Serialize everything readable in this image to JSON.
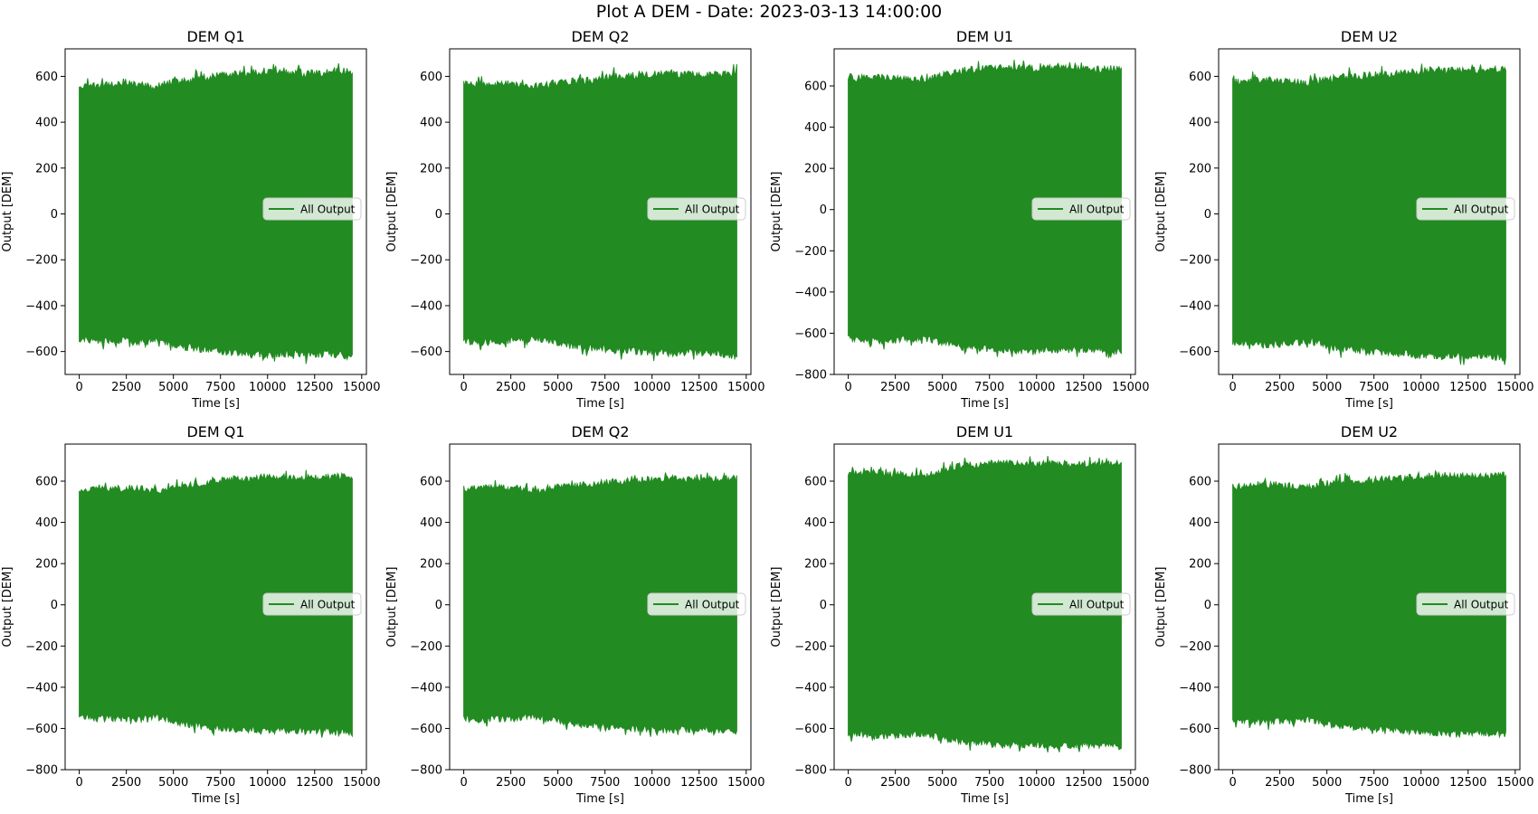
{
  "suptitle": "Plot A DEM - Date: 2023-03-13 14:00:00",
  "colors": {
    "line": "#228b22",
    "axes": "#000000",
    "legend_bg": "#ffffff",
    "legend_edge": "#cccccc"
  },
  "chart_data": [
    {
      "type": "area",
      "title": "DEM Q1",
      "xlabel": "Time [s]",
      "ylabel": "Output [DEM]",
      "legend": "All Output",
      "legend_loc": "center right",
      "xlim": [
        -750,
        15250
      ],
      "ylim": [
        -700,
        720
      ],
      "xticks": [
        0,
        2500,
        5000,
        7500,
        10000,
        12500,
        15000
      ],
      "yticks": [
        -600,
        -400,
        -200,
        0,
        200,
        400,
        600
      ],
      "series": [
        {
          "name": "All Output",
          "x": [
            0,
            1000,
            2000,
            3000,
            4000,
            5000,
            6000,
            7000,
            8000,
            9000,
            10000,
            11000,
            12000,
            13000,
            14000,
            14500
          ],
          "upper": [
            570,
            575,
            580,
            585,
            570,
            590,
            600,
            615,
            625,
            630,
            640,
            635,
            630,
            635,
            640,
            640
          ],
          "lower": [
            -560,
            -570,
            -565,
            -575,
            -560,
            -585,
            -600,
            -610,
            -620,
            -625,
            -630,
            -625,
            -630,
            -625,
            -635,
            -640
          ]
        }
      ]
    },
    {
      "type": "area",
      "title": "DEM Q2",
      "xlabel": "Time [s]",
      "ylabel": "Output [DEM]",
      "legend": "All Output",
      "legend_loc": "center right",
      "xlim": [
        -750,
        15250
      ],
      "ylim": [
        -700,
        720
      ],
      "xticks": [
        0,
        2500,
        5000,
        7500,
        10000,
        12500,
        15000
      ],
      "yticks": [
        -600,
        -400,
        -200,
        0,
        200,
        400,
        600
      ],
      "series": [
        {
          "name": "All Output",
          "x": [
            0,
            1000,
            2000,
            3000,
            4000,
            5000,
            6000,
            7000,
            8000,
            9000,
            10000,
            11000,
            12000,
            13000,
            14000,
            14500
          ],
          "upper": [
            580,
            585,
            585,
            580,
            570,
            590,
            595,
            605,
            615,
            620,
            625,
            630,
            625,
            625,
            630,
            630
          ],
          "lower": [
            -570,
            -575,
            -570,
            -565,
            -560,
            -580,
            -595,
            -600,
            -610,
            -615,
            -620,
            -625,
            -620,
            -620,
            -630,
            -635
          ]
        }
      ]
    },
    {
      "type": "area",
      "title": "DEM U1",
      "xlabel": "Time [s]",
      "ylabel": "Output [DEM]",
      "legend": "All Output",
      "legend_loc": "center right",
      "xlim": [
        -750,
        15250
      ],
      "ylim": [
        -800,
        780
      ],
      "xticks": [
        0,
        2500,
        5000,
        7500,
        10000,
        12500,
        15000
      ],
      "yticks": [
        -800,
        -600,
        -400,
        -200,
        0,
        200,
        400,
        600
      ],
      "series": [
        {
          "name": "All Output",
          "x": [
            0,
            1000,
            2000,
            3000,
            4000,
            5000,
            6000,
            7000,
            8000,
            9000,
            10000,
            11000,
            12000,
            13000,
            14000,
            14500
          ],
          "upper": [
            650,
            660,
            655,
            650,
            640,
            670,
            690,
            700,
            705,
            705,
            700,
            705,
            700,
            695,
            700,
            700
          ],
          "lower": [
            -640,
            -650,
            -655,
            -645,
            -640,
            -665,
            -680,
            -690,
            -695,
            -700,
            -695,
            -700,
            -695,
            -695,
            -700,
            -705
          ]
        }
      ]
    },
    {
      "type": "area",
      "title": "DEM U2",
      "xlabel": "Time [s]",
      "ylabel": "Output [DEM]",
      "legend": "All Output",
      "legend_loc": "center right",
      "xlim": [
        -750,
        15250
      ],
      "ylim": [
        -700,
        720
      ],
      "xticks": [
        0,
        2500,
        5000,
        7500,
        10000,
        12500,
        15000
      ],
      "yticks": [
        -600,
        -400,
        -200,
        0,
        200,
        400,
        600
      ],
      "series": [
        {
          "name": "All Output",
          "x": [
            0,
            1000,
            2000,
            3000,
            4000,
            5000,
            6000,
            7000,
            8000,
            9000,
            10000,
            11000,
            12000,
            13000,
            14000,
            14500
          ],
          "upper": [
            590,
            600,
            600,
            595,
            585,
            605,
            615,
            620,
            625,
            630,
            640,
            645,
            640,
            640,
            645,
            645
          ],
          "lower": [
            -575,
            -585,
            -585,
            -580,
            -570,
            -595,
            -605,
            -615,
            -620,
            -625,
            -635,
            -640,
            -635,
            -635,
            -640,
            -645
          ]
        }
      ]
    },
    {
      "type": "area",
      "title": "DEM Q1",
      "xlabel": "Time [s]",
      "ylabel": "Output [DEM]",
      "legend": "All Output",
      "legend_loc": "center right",
      "xlim": [
        -750,
        15250
      ],
      "ylim": [
        -800,
        780
      ],
      "xticks": [
        0,
        2500,
        5000,
        7500,
        10000,
        12500,
        15000
      ],
      "yticks": [
        -800,
        -600,
        -400,
        -200,
        0,
        200,
        400,
        600
      ],
      "series": [
        {
          "name": "All Output",
          "x": [
            0,
            1000,
            2000,
            3000,
            4000,
            5000,
            6000,
            7000,
            8000,
            9000,
            10000,
            11000,
            12000,
            13000,
            14000,
            14500
          ],
          "upper": [
            570,
            575,
            580,
            585,
            570,
            590,
            600,
            615,
            625,
            630,
            640,
            635,
            630,
            635,
            640,
            640
          ],
          "lower": [
            -560,
            -570,
            -565,
            -575,
            -560,
            -585,
            -600,
            -610,
            -620,
            -625,
            -630,
            -625,
            -630,
            -625,
            -635,
            -640
          ]
        }
      ]
    },
    {
      "type": "area",
      "title": "DEM Q2",
      "xlabel": "Time [s]",
      "ylabel": "Output [DEM]",
      "legend": "All Output",
      "legend_loc": "center right",
      "xlim": [
        -750,
        15250
      ],
      "ylim": [
        -800,
        780
      ],
      "xticks": [
        0,
        2500,
        5000,
        7500,
        10000,
        12500,
        15000
      ],
      "yticks": [
        -800,
        -600,
        -400,
        -200,
        0,
        200,
        400,
        600
      ],
      "series": [
        {
          "name": "All Output",
          "x": [
            0,
            1000,
            2000,
            3000,
            4000,
            5000,
            6000,
            7000,
            8000,
            9000,
            10000,
            11000,
            12000,
            13000,
            14000,
            14500
          ],
          "upper": [
            580,
            585,
            585,
            580,
            570,
            590,
            595,
            605,
            615,
            620,
            625,
            630,
            625,
            625,
            630,
            630
          ],
          "lower": [
            -570,
            -575,
            -570,
            -565,
            -560,
            -580,
            -595,
            -600,
            -610,
            -615,
            -620,
            -625,
            -620,
            -620,
            -630,
            -635
          ]
        }
      ]
    },
    {
      "type": "area",
      "title": "DEM U1",
      "xlabel": "Time [s]",
      "ylabel": "Output [DEM]",
      "legend": "All Output",
      "legend_loc": "center right",
      "xlim": [
        -750,
        15250
      ],
      "ylim": [
        -800,
        780
      ],
      "xticks": [
        0,
        2500,
        5000,
        7500,
        10000,
        12500,
        15000
      ],
      "yticks": [
        -800,
        -600,
        -400,
        -200,
        0,
        200,
        400,
        600
      ],
      "series": [
        {
          "name": "All Output",
          "x": [
            0,
            1000,
            2000,
            3000,
            4000,
            5000,
            6000,
            7000,
            8000,
            9000,
            10000,
            11000,
            12000,
            13000,
            14000,
            14500
          ],
          "upper": [
            650,
            660,
            655,
            650,
            640,
            670,
            690,
            700,
            705,
            705,
            700,
            705,
            700,
            695,
            700,
            700
          ],
          "lower": [
            -640,
            -650,
            -655,
            -645,
            -640,
            -665,
            -680,
            -690,
            -695,
            -700,
            -695,
            -700,
            -695,
            -695,
            -700,
            -705
          ]
        }
      ]
    },
    {
      "type": "area",
      "title": "DEM U2",
      "xlabel": "Time [s]",
      "ylabel": "Output [DEM]",
      "legend": "All Output",
      "legend_loc": "center right",
      "xlim": [
        -750,
        15250
      ],
      "ylim": [
        -800,
        780
      ],
      "xticks": [
        0,
        2500,
        5000,
        7500,
        10000,
        12500,
        15000
      ],
      "yticks": [
        -800,
        -600,
        -400,
        -200,
        0,
        200,
        400,
        600
      ],
      "series": [
        {
          "name": "All Output",
          "x": [
            0,
            1000,
            2000,
            3000,
            4000,
            5000,
            6000,
            7000,
            8000,
            9000,
            10000,
            11000,
            12000,
            13000,
            14000,
            14500
          ],
          "upper": [
            590,
            600,
            600,
            595,
            585,
            605,
            615,
            620,
            625,
            630,
            640,
            645,
            640,
            640,
            645,
            645
          ],
          "lower": [
            -575,
            -585,
            -585,
            -580,
            -570,
            -595,
            -605,
            -615,
            -620,
            -625,
            -635,
            -640,
            -635,
            -635,
            -640,
            -645
          ]
        }
      ]
    }
  ]
}
